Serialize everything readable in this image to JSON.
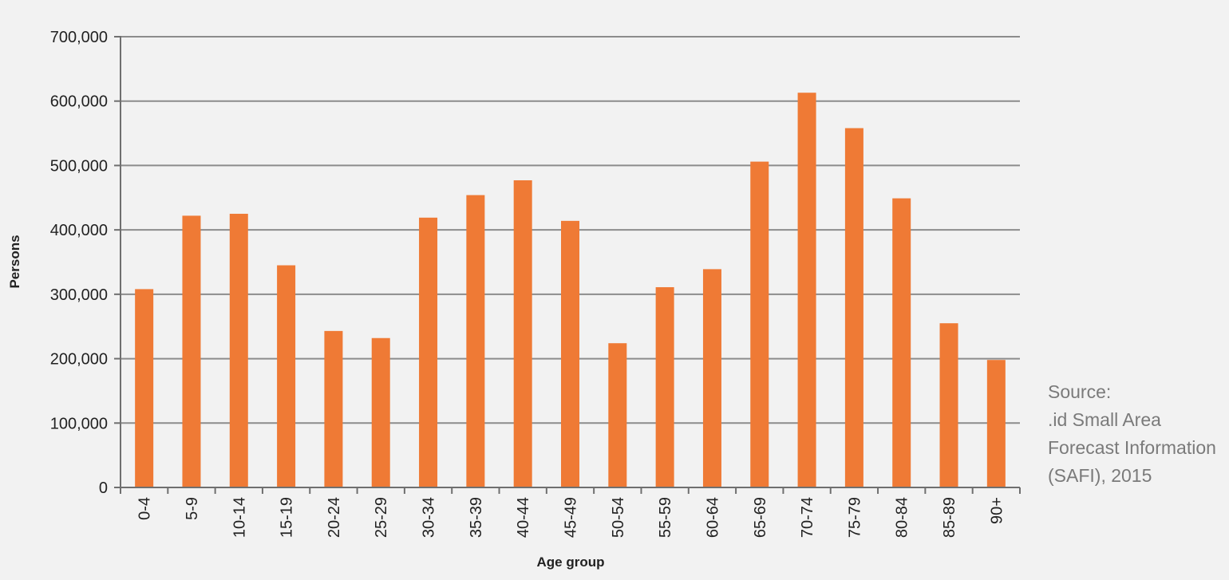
{
  "chart_data": {
    "type": "bar",
    "categories": [
      "0-4",
      "5-9",
      "10-14",
      "15-19",
      "20-24",
      "25-29",
      "30-34",
      "35-39",
      "40-44",
      "45-49",
      "50-54",
      "55-59",
      "60-64",
      "65-69",
      "70-74",
      "75-79",
      "80-84",
      "85-89",
      "90+"
    ],
    "series": [
      {
        "values": [
          308000,
          422000,
          425000,
          345000,
          243000,
          232000,
          419000,
          454000,
          477000,
          414000,
          224000,
          311000,
          339000,
          506000,
          613000,
          558000,
          449000,
          255000,
          198000
        ]
      }
    ],
    "xlabel": "Age group",
    "ylabel": "Persons",
    "ylim": [
      0,
      700000
    ],
    "yticks": [
      0,
      100000,
      200000,
      300000,
      400000,
      500000,
      600000,
      700000
    ],
    "ytick_labels": [
      "0",
      "100,000",
      "200,000",
      "300,000",
      "400,000",
      "500,000",
      "600,000",
      "700,000"
    ],
    "grid": true,
    "colors": {
      "bar": "#ef7a35",
      "grid": "#8c8c8c",
      "axis": "#6f6f6f",
      "background": "#f2f2f2"
    }
  },
  "source": {
    "lines": [
      "Source:",
      ".id Small Area",
      "Forecast Information",
      "(SAFI), 2015"
    ]
  }
}
